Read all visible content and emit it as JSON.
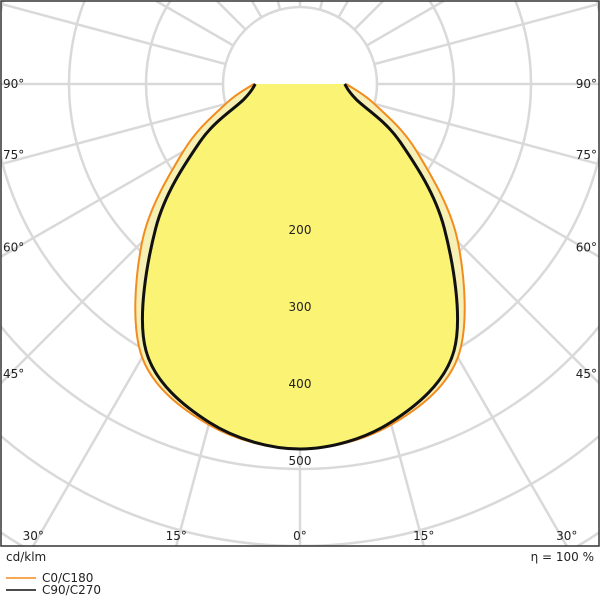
{
  "chart_data": {
    "type": "polar",
    "x": [
      -90,
      -75,
      -60,
      -45,
      -30,
      -15,
      0,
      15,
      30,
      45,
      60,
      75,
      90
    ],
    "series": [
      {
        "name": "C0/C180",
        "color": "#f28c1e",
        "fill": "#f7f0b4",
        "values": [
          60,
          100,
          175,
          290,
          410,
          458,
          474,
          458,
          410,
          290,
          175,
          100,
          60
        ]
      },
      {
        "name": "C90/C270",
        "color": "#111111",
        "fill": "#fbf374",
        "values": [
          58,
          75,
          150,
          265,
          400,
          455,
          474,
          455,
          400,
          265,
          150,
          75,
          58
        ]
      }
    ],
    "angle_ticks": [
      {
        "value": -90,
        "label": "90°"
      },
      {
        "value": -75,
        "label": "75°"
      },
      {
        "value": -60,
        "label": "60°"
      },
      {
        "value": -45,
        "label": "45°"
      },
      {
        "value": -30,
        "label": "30°"
      },
      {
        "value": -15,
        "label": "15°"
      },
      {
        "value": 0,
        "label": "0°"
      },
      {
        "value": 15,
        "label": "15°"
      },
      {
        "value": 30,
        "label": "30°"
      },
      {
        "value": 45,
        "label": "45°"
      },
      {
        "value": 60,
        "label": "60°"
      },
      {
        "value": 75,
        "label": "75°"
      },
      {
        "value": 90,
        "label": "90°"
      }
    ],
    "rlim": [
      0,
      700
    ],
    "rticks": [
      200,
      300,
      400,
      500
    ],
    "unit_label": "cd/klm",
    "efficiency_label": "η = 100 %"
  }
}
